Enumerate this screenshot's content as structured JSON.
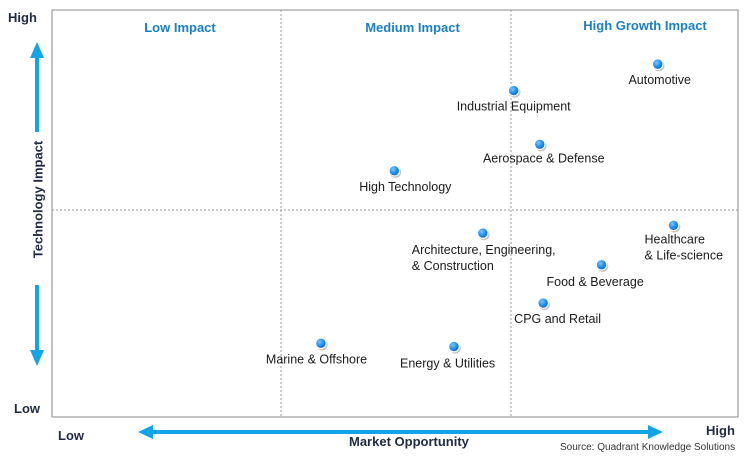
{
  "colors": {
    "accent": "#12a4e8",
    "point": "#1e8ff0",
    "quadrant_label": "#1a7fc4",
    "axis_text": "#1f2a44"
  },
  "y_axis": {
    "high": "High",
    "low": "Low",
    "title": "Technology Impact"
  },
  "x_axis": {
    "low": "Low",
    "high": "High",
    "title": "Market Opportunity"
  },
  "quadrants": {
    "low": "Low Impact",
    "medium": "Medium Impact",
    "high": "High Growth Impact"
  },
  "source": "Source: Quadrant Knowledge Solutions",
  "chart_data": {
    "type": "scatter",
    "title": "",
    "xlabel": "Market Opportunity",
    "ylabel": "Technology Impact",
    "xlim": [
      0,
      100
    ],
    "ylim": [
      0,
      100
    ],
    "grid": false,
    "legend": "none",
    "points": [
      {
        "label": "Automotive",
        "x": 88.3,
        "y": 86.7
      },
      {
        "label": "Industrial Equipment",
        "x": 67.3,
        "y": 80.2
      },
      {
        "label": "Aerospace & Defense",
        "x": 71.1,
        "y": 67.0
      },
      {
        "label": "High Technology",
        "x": 49.9,
        "y": 60.5
      },
      {
        "label": "Healthcare\n& Life-science",
        "x": 90.6,
        "y": 47.1
      },
      {
        "label": "Architecture, Engineering,\n& Construction",
        "x": 62.8,
        "y": 45.2
      },
      {
        "label": "Food & Beverage",
        "x": 80.1,
        "y": 37.4
      },
      {
        "label": "CPG and Retail",
        "x": 71.6,
        "y": 28.0
      },
      {
        "label": "Marine & Offshore",
        "x": 39.2,
        "y": 18.1
      },
      {
        "label": "Energy & Utilities",
        "x": 58.6,
        "y": 17.3
      }
    ]
  }
}
